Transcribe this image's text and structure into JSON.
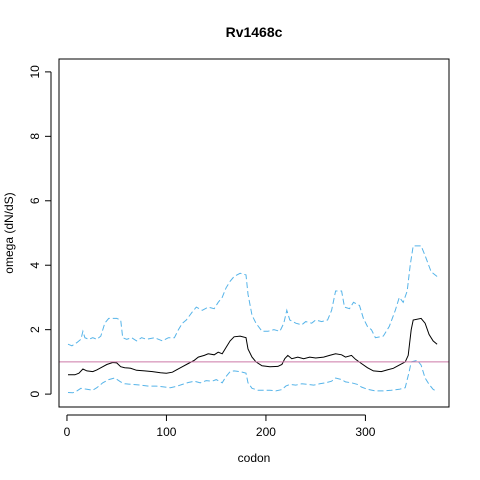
{
  "chart_data": {
    "type": "line",
    "title": "Rv1468c",
    "xlabel": "codon",
    "ylabel": "omega (dN/dS)",
    "xlim": [
      -8,
      384
    ],
    "ylim": [
      -0.4,
      10.4
    ],
    "x_ticks": [
      0,
      100,
      200,
      300
    ],
    "y_ticks": [
      0,
      2,
      4,
      6,
      8,
      10
    ],
    "grid": false,
    "legend": "none",
    "reference_line": {
      "y": 1,
      "color": "#cc79a7"
    },
    "series": [
      {
        "role": "upper",
        "color": "#56b4e9",
        "style": "dashed",
        "points": [
          [
            1,
            1.55
          ],
          [
            5,
            1.5
          ],
          [
            10,
            1.6
          ],
          [
            14,
            1.7
          ],
          [
            16,
            1.95
          ],
          [
            18,
            1.75
          ],
          [
            22,
            1.7
          ],
          [
            26,
            1.75
          ],
          [
            30,
            1.7
          ],
          [
            34,
            1.8
          ],
          [
            38,
            2.2
          ],
          [
            42,
            2.35
          ],
          [
            50,
            2.35
          ],
          [
            54,
            2.3
          ],
          [
            56,
            1.75
          ],
          [
            60,
            1.7
          ],
          [
            65,
            1.75
          ],
          [
            70,
            1.65
          ],
          [
            75,
            1.75
          ],
          [
            80,
            1.7
          ],
          [
            88,
            1.75
          ],
          [
            96,
            1.65
          ],
          [
            102,
            1.75
          ],
          [
            108,
            1.75
          ],
          [
            112,
            2.0
          ],
          [
            116,
            2.2
          ],
          [
            120,
            2.3
          ],
          [
            126,
            2.55
          ],
          [
            130,
            2.7
          ],
          [
            136,
            2.6
          ],
          [
            142,
            2.7
          ],
          [
            148,
            2.65
          ],
          [
            152,
            2.85
          ],
          [
            156,
            3.0
          ],
          [
            160,
            3.3
          ],
          [
            164,
            3.5
          ],
          [
            168,
            3.65
          ],
          [
            174,
            3.75
          ],
          [
            180,
            3.7
          ],
          [
            182,
            3.1
          ],
          [
            186,
            2.45
          ],
          [
            190,
            2.2
          ],
          [
            196,
            1.95
          ],
          [
            202,
            1.95
          ],
          [
            208,
            2.0
          ],
          [
            214,
            1.95
          ],
          [
            218,
            2.2
          ],
          [
            221,
            2.6
          ],
          [
            224,
            2.3
          ],
          [
            230,
            2.2
          ],
          [
            236,
            2.15
          ],
          [
            240,
            2.25
          ],
          [
            246,
            2.2
          ],
          [
            250,
            2.3
          ],
          [
            256,
            2.25
          ],
          [
            262,
            2.3
          ],
          [
            266,
            2.6
          ],
          [
            270,
            3.2
          ],
          [
            276,
            3.2
          ],
          [
            279,
            2.7
          ],
          [
            284,
            2.65
          ],
          [
            288,
            2.85
          ],
          [
            294,
            2.75
          ],
          [
            298,
            2.35
          ],
          [
            302,
            2.1
          ],
          [
            306,
            2.0
          ],
          [
            310,
            1.75
          ],
          [
            318,
            1.8
          ],
          [
            324,
            2.1
          ],
          [
            330,
            2.6
          ],
          [
            334,
            3.0
          ],
          [
            338,
            2.85
          ],
          [
            342,
            3.2
          ],
          [
            345,
            4.0
          ],
          [
            348,
            4.6
          ],
          [
            356,
            4.6
          ],
          [
            360,
            4.3
          ],
          [
            366,
            3.8
          ],
          [
            372,
            3.65
          ]
        ]
      },
      {
        "role": "estimate",
        "color": "#000000",
        "style": "solid",
        "points": [
          [
            1,
            0.6
          ],
          [
            8,
            0.6
          ],
          [
            12,
            0.65
          ],
          [
            16,
            0.78
          ],
          [
            20,
            0.72
          ],
          [
            26,
            0.7
          ],
          [
            30,
            0.75
          ],
          [
            36,
            0.85
          ],
          [
            40,
            0.92
          ],
          [
            46,
            0.98
          ],
          [
            50,
            0.97
          ],
          [
            54,
            0.85
          ],
          [
            58,
            0.82
          ],
          [
            64,
            0.8
          ],
          [
            70,
            0.74
          ],
          [
            78,
            0.72
          ],
          [
            86,
            0.7
          ],
          [
            94,
            0.66
          ],
          [
            100,
            0.65
          ],
          [
            106,
            0.68
          ],
          [
            110,
            0.75
          ],
          [
            116,
            0.85
          ],
          [
            122,
            0.95
          ],
          [
            128,
            1.05
          ],
          [
            132,
            1.15
          ],
          [
            138,
            1.2
          ],
          [
            142,
            1.25
          ],
          [
            148,
            1.22
          ],
          [
            152,
            1.3
          ],
          [
            156,
            1.25
          ],
          [
            160,
            1.45
          ],
          [
            164,
            1.65
          ],
          [
            168,
            1.78
          ],
          [
            174,
            1.8
          ],
          [
            180,
            1.75
          ],
          [
            182,
            1.4
          ],
          [
            186,
            1.15
          ],
          [
            190,
            1.0
          ],
          [
            196,
            0.88
          ],
          [
            204,
            0.85
          ],
          [
            212,
            0.86
          ],
          [
            216,
            0.92
          ],
          [
            219,
            1.1
          ],
          [
            222,
            1.2
          ],
          [
            226,
            1.1
          ],
          [
            232,
            1.15
          ],
          [
            238,
            1.1
          ],
          [
            244,
            1.15
          ],
          [
            250,
            1.12
          ],
          [
            258,
            1.15
          ],
          [
            264,
            1.2
          ],
          [
            270,
            1.25
          ],
          [
            276,
            1.22
          ],
          [
            280,
            1.15
          ],
          [
            286,
            1.2
          ],
          [
            290,
            1.08
          ],
          [
            296,
            0.95
          ],
          [
            302,
            0.82
          ],
          [
            308,
            0.72
          ],
          [
            316,
            0.7
          ],
          [
            322,
            0.75
          ],
          [
            328,
            0.8
          ],
          [
            334,
            0.9
          ],
          [
            340,
            1.0
          ],
          [
            343,
            1.2
          ],
          [
            346,
            2.0
          ],
          [
            348,
            2.3
          ],
          [
            356,
            2.35
          ],
          [
            360,
            2.2
          ],
          [
            364,
            1.85
          ],
          [
            368,
            1.65
          ],
          [
            372,
            1.55
          ]
        ]
      },
      {
        "role": "lower",
        "color": "#56b4e9",
        "style": "dashed",
        "points": [
          [
            1,
            0.05
          ],
          [
            6,
            0.04
          ],
          [
            10,
            0.1
          ],
          [
            14,
            0.18
          ],
          [
            20,
            0.15
          ],
          [
            26,
            0.12
          ],
          [
            30,
            0.2
          ],
          [
            36,
            0.35
          ],
          [
            42,
            0.45
          ],
          [
            48,
            0.5
          ],
          [
            54,
            0.38
          ],
          [
            58,
            0.32
          ],
          [
            66,
            0.3
          ],
          [
            74,
            0.28
          ],
          [
            82,
            0.25
          ],
          [
            90,
            0.25
          ],
          [
            98,
            0.22
          ],
          [
            104,
            0.2
          ],
          [
            110,
            0.24
          ],
          [
            116,
            0.3
          ],
          [
            122,
            0.36
          ],
          [
            128,
            0.4
          ],
          [
            134,
            0.35
          ],
          [
            140,
            0.42
          ],
          [
            146,
            0.4
          ],
          [
            150,
            0.45
          ],
          [
            156,
            0.35
          ],
          [
            160,
            0.55
          ],
          [
            164,
            0.7
          ],
          [
            168,
            0.72
          ],
          [
            174,
            0.7
          ],
          [
            180,
            0.65
          ],
          [
            182,
            0.35
          ],
          [
            186,
            0.18
          ],
          [
            192,
            0.12
          ],
          [
            198,
            0.12
          ],
          [
            204,
            0.12
          ],
          [
            210,
            0.1
          ],
          [
            216,
            0.14
          ],
          [
            220,
            0.25
          ],
          [
            224,
            0.3
          ],
          [
            230,
            0.28
          ],
          [
            236,
            0.32
          ],
          [
            242,
            0.3
          ],
          [
            248,
            0.28
          ],
          [
            254,
            0.32
          ],
          [
            260,
            0.35
          ],
          [
            266,
            0.4
          ],
          [
            270,
            0.5
          ],
          [
            276,
            0.45
          ],
          [
            280,
            0.38
          ],
          [
            286,
            0.35
          ],
          [
            292,
            0.3
          ],
          [
            296,
            0.22
          ],
          [
            302,
            0.15
          ],
          [
            310,
            0.1
          ],
          [
            318,
            0.1
          ],
          [
            326,
            0.12
          ],
          [
            334,
            0.15
          ],
          [
            340,
            0.2
          ],
          [
            344,
            0.7
          ],
          [
            346,
            1.0
          ],
          [
            352,
            1.05
          ],
          [
            356,
            0.9
          ],
          [
            360,
            0.5
          ],
          [
            364,
            0.3
          ],
          [
            368,
            0.15
          ],
          [
            372,
            0.08
          ]
        ]
      }
    ]
  }
}
